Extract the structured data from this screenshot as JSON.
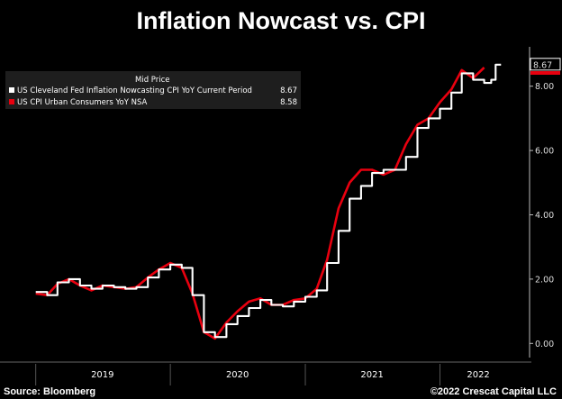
{
  "chart_data": {
    "type": "line",
    "title": "Inflation Nowcast vs. CPI",
    "legend_header": "Mid Price",
    "legend_placement": "top-left",
    "ylim": [
      -0.3,
      9.0
    ],
    "y_ticks": [
      "0.00",
      "2.00",
      "4.00",
      "6.00",
      "8.00"
    ],
    "x_categories": [
      "2019",
      "2020",
      "2021",
      "2022"
    ],
    "grid": false,
    "series": [
      {
        "name": "US Cleveland Fed Inflation Nowcasting CPI YoY Current Period",
        "last_value": "8.67",
        "color": "#ffffff",
        "step": true,
        "values": [
          [
            "2019-01-01",
            1.6
          ],
          [
            "2019-02-01",
            1.5
          ],
          [
            "2019-03-01",
            1.9
          ],
          [
            "2019-04-01",
            2.0
          ],
          [
            "2019-05-01",
            1.8
          ],
          [
            "2019-06-01",
            1.7
          ],
          [
            "2019-07-01",
            1.8
          ],
          [
            "2019-08-01",
            1.75
          ],
          [
            "2019-09-01",
            1.7
          ],
          [
            "2019-10-01",
            1.75
          ],
          [
            "2019-11-01",
            2.05
          ],
          [
            "2019-12-01",
            2.3
          ],
          [
            "2020-01-01",
            2.45
          ],
          [
            "2020-02-01",
            2.35
          ],
          [
            "2020-03-01",
            1.5
          ],
          [
            "2020-04-01",
            0.35
          ],
          [
            "2020-05-01",
            0.2
          ],
          [
            "2020-06-01",
            0.6
          ],
          [
            "2020-07-01",
            0.85
          ],
          [
            "2020-08-01",
            1.1
          ],
          [
            "2020-09-01",
            1.35
          ],
          [
            "2020-10-01",
            1.2
          ],
          [
            "2020-11-01",
            1.15
          ],
          [
            "2020-12-01",
            1.3
          ],
          [
            "2021-01-01",
            1.45
          ],
          [
            "2021-02-01",
            1.65
          ],
          [
            "2021-03-01",
            2.5
          ],
          [
            "2021-04-01",
            3.5
          ],
          [
            "2021-05-01",
            4.5
          ],
          [
            "2021-06-01",
            4.9
          ],
          [
            "2021-07-01",
            5.3
          ],
          [
            "2021-08-01",
            5.4
          ],
          [
            "2021-09-01",
            5.4
          ],
          [
            "2021-10-01",
            5.8
          ],
          [
            "2021-11-01",
            6.7
          ],
          [
            "2021-12-01",
            7.0
          ],
          [
            "2022-01-01",
            7.3
          ],
          [
            "2022-02-01",
            7.8
          ],
          [
            "2022-03-01",
            8.4
          ],
          [
            "2022-04-01",
            8.2
          ],
          [
            "2022-05-01",
            8.1
          ],
          [
            "2022-05-20",
            8.2
          ],
          [
            "2022-06-01",
            8.67
          ]
        ]
      },
      {
        "name": "US CPI Urban Consumers YoY NSA",
        "last_value": "8.58",
        "color": "#e8000f",
        "step": false,
        "values": [
          [
            "2019-01-01",
            1.55
          ],
          [
            "2019-02-01",
            1.5
          ],
          [
            "2019-03-01",
            1.85
          ],
          [
            "2019-04-01",
            2.0
          ],
          [
            "2019-05-01",
            1.8
          ],
          [
            "2019-06-01",
            1.65
          ],
          [
            "2019-07-01",
            1.8
          ],
          [
            "2019-08-01",
            1.75
          ],
          [
            "2019-09-01",
            1.7
          ],
          [
            "2019-10-01",
            1.75
          ],
          [
            "2019-11-01",
            2.05
          ],
          [
            "2019-12-01",
            2.3
          ],
          [
            "2020-01-01",
            2.5
          ],
          [
            "2020-02-01",
            2.35
          ],
          [
            "2020-03-01",
            1.55
          ],
          [
            "2020-04-01",
            0.35
          ],
          [
            "2020-05-01",
            0.15
          ],
          [
            "2020-06-01",
            0.65
          ],
          [
            "2020-07-01",
            1.0
          ],
          [
            "2020-08-01",
            1.3
          ],
          [
            "2020-09-01",
            1.4
          ],
          [
            "2020-10-01",
            1.2
          ],
          [
            "2020-11-01",
            1.2
          ],
          [
            "2020-12-01",
            1.35
          ],
          [
            "2021-01-01",
            1.4
          ],
          [
            "2021-02-01",
            1.7
          ],
          [
            "2021-03-01",
            2.6
          ],
          [
            "2021-04-01",
            4.2
          ],
          [
            "2021-05-01",
            5.0
          ],
          [
            "2021-06-01",
            5.4
          ],
          [
            "2021-07-01",
            5.4
          ],
          [
            "2021-08-01",
            5.25
          ],
          [
            "2021-09-01",
            5.4
          ],
          [
            "2021-10-01",
            6.2
          ],
          [
            "2021-11-01",
            6.8
          ],
          [
            "2021-12-01",
            7.0
          ],
          [
            "2022-01-01",
            7.5
          ],
          [
            "2022-02-01",
            7.9
          ],
          [
            "2022-03-01",
            8.5
          ],
          [
            "2022-04-01",
            8.25
          ],
          [
            "2022-05-01",
            8.58
          ]
        ]
      }
    ]
  },
  "footer": {
    "source": "Source: Bloomberg",
    "copyright": "©2022 Crescat Capital LLC"
  }
}
